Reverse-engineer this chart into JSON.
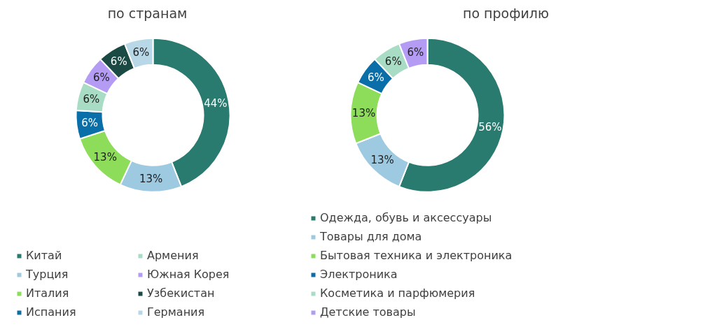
{
  "chart_data": [
    {
      "type": "donut",
      "title": "по странам",
      "categories": [
        "Китай",
        "Турция",
        "Италия",
        "Испания",
        "Армения",
        "Южная Корея",
        "Узбекистан",
        "Германия"
      ],
      "values": [
        44,
        13,
        13,
        6,
        6,
        6,
        6,
        6
      ],
      "value_labels": [
        "44%",
        "13%",
        "13%",
        "6%",
        "6%",
        "6%",
        "6%",
        "6%"
      ],
      "colors": [
        "#2a7b6f",
        "#9ecae1",
        "#8ddc5a",
        "#0a6fa8",
        "#a8dcc5",
        "#b49cf5",
        "#1b4a45",
        "#b8d8e8"
      ],
      "legend": "bottom"
    },
    {
      "type": "donut",
      "title": "по профилю",
      "categories": [
        "Одежда, обувь и аксессуары",
        "Товары для дома",
        "Бытовая техника и электроника",
        "Электроника",
        "Косметика и парфюмерия",
        "Детские товары"
      ],
      "values": [
        56,
        13,
        13,
        6,
        6,
        6
      ],
      "value_labels": [
        "56%",
        "13%",
        "13%",
        "6%",
        "6%",
        "6%"
      ],
      "colors": [
        "#2a7b6f",
        "#9ecae1",
        "#8ddc5a",
        "#0a6fa8",
        "#a8dcc5",
        "#b49cf5"
      ],
      "legend": "bottom"
    }
  ]
}
